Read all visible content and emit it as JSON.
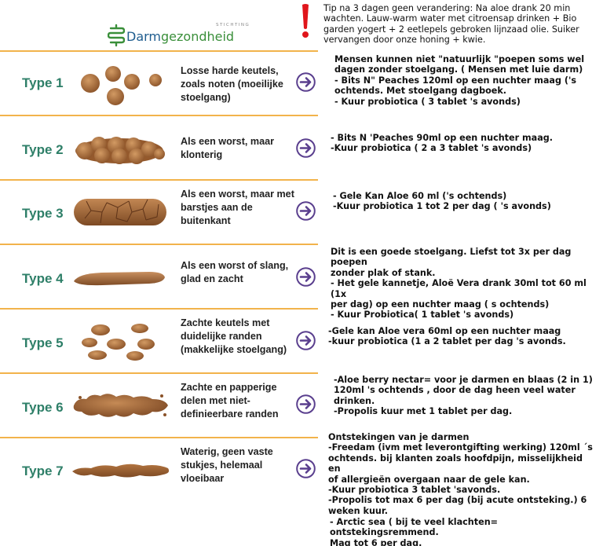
{
  "logo": {
    "small_text": "STICHTING",
    "part1": "Darm",
    "part2": "gezondheid"
  },
  "tip": "Tip na 3 dagen geen verandering: Na aloe drank 20 min wachten. Lauw-warm water met citroensap drinken + Bio garden yogert + 2 eetlepels gebroken lijnzaad olie. Suiker vervangen door onze honing + kwie.",
  "types": [
    {
      "label": "Type 1",
      "description": "Losse harde keutels, zoals noten (moeilijke stoelgang)"
    },
    {
      "label": "Type 2",
      "description": "Als een worst, maar klonterig"
    },
    {
      "label": "Type 3",
      "description": "Als een worst, maar met barstjes aan de buitenkant"
    },
    {
      "label": "Type 4",
      "description": "Als een worst of slang, glad en zacht"
    },
    {
      "label": "Type 5",
      "description": "Zachte keutels met duidelijke randen (makkelijke stoelgang)"
    },
    {
      "label": "Type 6",
      "description": "Zachte en papperige delen met niet-definieerbare randen"
    },
    {
      "label": "Type 7",
      "description": "Waterig, geen vaste stukjes, helemaal vloeibaar"
    }
  ],
  "advice": [
    "Mensen kunnen niet \"natuurlijk \"poepen soms wel\n dagen zonder stoelgang. ( Mensen met luie darm)\n- Bits N\" Peaches 120ml op een nuchter maag ('s\nochtends. Met stoelgang dagboek.\n- Kuur probiotica ( 3 tablet 's avonds)",
    "- Bits N 'Peaches 90ml op een nuchter maag.\n-Kuur probiotica ( 2 a 3 tablet 's avonds)",
    "- Gele Kan Aloe 60 ml ('s ochtends)\n-Kuur probiotica 1 tot 2 per dag ( 's avonds)",
    "Dit is een goede stoelgang. Liefst tot 3x per dag poepen\nzonder plak of stank.\n- Het gele kannetje,  Aloë Vera drank  30ml tot 60 ml (1x\nper dag) op een nuchter maag ( s ochtends)\n- Kuur Probiotica( 1 tablet 's avonds)",
    "-Gele kan Aloe vera 60ml op een nuchter maag\n-kuur probiotica (1 a 2 tablet per dag 's avonds.",
    "-Aloe berry nectar= voor je darmen en blaas (2 in 1)\n120ml 's ochtends , door de dag heen veel water\ndrinken.\n-Propolis kuur met 1 tablet per dag.",
    "Ontstekingen van je darmen\n-Freedam (ivm met leverontgifting werking) 120ml ´s\nochtends. bij klanten zoals hoofdpijn, misselijkheid en\nof allergieën overgaan naar de gele kan.\n-Kuur probiotica 3 tablet 'savonds.\n-Propolis tot max 6 per dag (bij acute ontsteking.) 6\nweken kuur.",
    "- Arctic sea ( bij te veel klachten= ontstekingsremmend.\nMag tot 6 per dag."
  ],
  "colors": {
    "label": "#2e7f68",
    "separator": "#f2b34b",
    "arrow": "#5a3f8e",
    "stool": "#a5683a",
    "exclamation": "#e0151b"
  }
}
